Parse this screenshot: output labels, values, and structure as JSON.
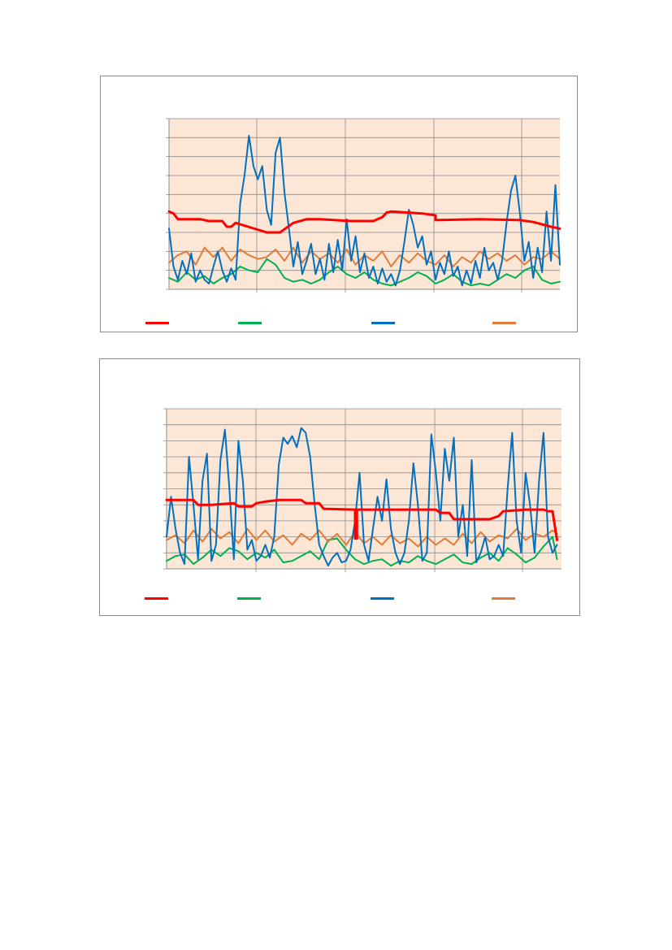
{
  "chart_data": [
    {
      "type": "line",
      "title": "",
      "xlabel": "",
      "ylabel": "",
      "ylim": [
        0,
        9
      ],
      "xlim": [
        0,
        4.4
      ],
      "grid": true,
      "legend_position": "bottom",
      "background_color": "#fce6d6",
      "series": [
        {
          "color": "#ff0000",
          "width": 3,
          "x": [
            0,
            0.05,
            0.1,
            0.35,
            0.45,
            0.6,
            0.65,
            0.7,
            0.75,
            1.1,
            1.25,
            1.4,
            1.55,
            1.7,
            2.05,
            2.3,
            2.4,
            2.45,
            2.5,
            2.85,
            3.0,
            3.0,
            3.05,
            3.5,
            3.95,
            4.1,
            4.3,
            4.4
          ],
          "y": [
            4.1,
            4.0,
            3.7,
            3.7,
            3.6,
            3.6,
            3.3,
            3.3,
            3.5,
            3.0,
            3.0,
            3.5,
            3.7,
            3.7,
            3.6,
            3.6,
            3.8,
            4.05,
            4.1,
            4.0,
            3.9,
            3.65,
            3.65,
            3.7,
            3.65,
            3.55,
            3.3,
            3.2
          ]
        },
        {
          "color": "#00b050",
          "width": 2,
          "x": [
            0,
            0.1,
            0.2,
            0.3,
            0.4,
            0.5,
            0.6,
            0.7,
            0.8,
            0.9,
            1.0,
            1.1,
            1.2,
            1.3,
            1.4,
            1.5,
            1.6,
            1.7,
            1.8,
            1.9,
            2.0,
            2.1,
            2.2,
            2.3,
            2.4,
            2.5,
            2.6,
            2.7,
            2.8,
            2.9,
            3.0,
            3.1,
            3.2,
            3.3,
            3.4,
            3.5,
            3.6,
            3.7,
            3.8,
            3.9,
            4.0,
            4.1,
            4.2,
            4.3,
            4.4
          ],
          "y": [
            0.6,
            0.4,
            0.9,
            0.5,
            0.7,
            0.3,
            0.6,
            0.8,
            1.2,
            1.0,
            0.9,
            1.6,
            1.3,
            0.6,
            0.4,
            0.5,
            0.3,
            0.5,
            0.9,
            1.2,
            0.8,
            0.6,
            0.9,
            0.5,
            0.3,
            0.2,
            0.4,
            0.6,
            0.9,
            0.7,
            0.3,
            0.5,
            0.8,
            0.4,
            0.2,
            0.3,
            0.2,
            0.5,
            0.8,
            0.6,
            1.0,
            1.2,
            0.5,
            0.3,
            0.4
          ]
        },
        {
          "color": "#0070c0",
          "width": 2,
          "x": [
            0,
            0.05,
            0.1,
            0.15,
            0.2,
            0.25,
            0.3,
            0.35,
            0.4,
            0.45,
            0.5,
            0.55,
            0.6,
            0.65,
            0.7,
            0.75,
            0.8,
            0.85,
            0.9,
            0.95,
            1.0,
            1.05,
            1.1,
            1.15,
            1.2,
            1.25,
            1.3,
            1.35,
            1.4,
            1.45,
            1.5,
            1.55,
            1.6,
            1.65,
            1.7,
            1.75,
            1.8,
            1.85,
            1.9,
            1.95,
            2.0,
            2.05,
            2.1,
            2.15,
            2.2,
            2.25,
            2.3,
            2.35,
            2.4,
            2.45,
            2.5,
            2.55,
            2.6,
            2.65,
            2.7,
            2.75,
            2.8,
            2.85,
            2.9,
            2.95,
            3.0,
            3.05,
            3.1,
            3.15,
            3.2,
            3.25,
            3.3,
            3.35,
            3.4,
            3.45,
            3.5,
            3.55,
            3.6,
            3.65,
            3.7,
            3.75,
            3.8,
            3.85,
            3.9,
            3.95,
            4.0,
            4.05,
            4.1,
            4.15,
            4.2,
            4.25,
            4.3,
            4.35,
            4.4
          ],
          "y": [
            3.2,
            1.2,
            0.5,
            1.5,
            0.8,
            1.9,
            0.4,
            1.0,
            0.5,
            0.3,
            1.2,
            2.0,
            1.0,
            0.4,
            1.1,
            0.5,
            4.5,
            6.0,
            8.1,
            6.5,
            5.8,
            6.5,
            4.2,
            3.4,
            7.2,
            8.0,
            5.1,
            3.2,
            1.2,
            2.5,
            0.8,
            1.5,
            2.4,
            0.8,
            1.6,
            0.5,
            2.4,
            0.9,
            2.6,
            1.0,
            3.7,
            1.5,
            2.8,
            0.9,
            1.9,
            0.6,
            1.2,
            0.3,
            1.1,
            0.4,
            0.8,
            0.2,
            1.0,
            2.5,
            4.2,
            3.4,
            2.2,
            2.8,
            1.3,
            2.0,
            0.5,
            1.4,
            0.8,
            2.0,
            0.7,
            1.2,
            0.2,
            1.0,
            0.3,
            1.5,
            0.6,
            2.2,
            1.0,
            1.4,
            0.5,
            1.5,
            3.5,
            5.2,
            6.0,
            4.0,
            1.5,
            2.5,
            0.6,
            2.2,
            0.9,
            4.1,
            1.5,
            5.5,
            1.3
          ]
        },
        {
          "color": "#e07b39",
          "width": 2,
          "x": [
            0,
            0.1,
            0.2,
            0.3,
            0.4,
            0.5,
            0.6,
            0.7,
            0.8,
            0.9,
            1.0,
            1.1,
            1.2,
            1.3,
            1.4,
            1.5,
            1.6,
            1.7,
            1.8,
            1.9,
            2.0,
            2.1,
            2.2,
            2.3,
            2.4,
            2.5,
            2.6,
            2.7,
            2.8,
            2.9,
            3.0,
            3.1,
            3.2,
            3.3,
            3.4,
            3.5,
            3.6,
            3.7,
            3.8,
            3.9,
            4.0,
            4.1,
            4.2,
            4.3,
            4.4
          ],
          "y": [
            1.4,
            1.8,
            2.0,
            1.3,
            2.2,
            1.7,
            2.2,
            1.5,
            2.1,
            1.8,
            1.6,
            1.7,
            2.1,
            1.5,
            2.2,
            1.4,
            2.0,
            1.6,
            1.9,
            1.4,
            2.1,
            1.3,
            1.8,
            1.5,
            2.0,
            1.2,
            1.8,
            1.4,
            1.9,
            1.5,
            1.3,
            1.8,
            1.2,
            1.7,
            1.4,
            2.0,
            1.6,
            1.9,
            1.5,
            1.8,
            1.3,
            1.7,
            1.6,
            2.0,
            1.6
          ]
        }
      ]
    },
    {
      "type": "line",
      "title": "",
      "xlabel": "",
      "ylabel": "",
      "ylim": [
        0,
        10
      ],
      "xlim": [
        0,
        4.4
      ],
      "grid": true,
      "legend_position": "bottom",
      "background_color": "#fce6d6",
      "series": [
        {
          "color": "#ff0000",
          "width": 3,
          "x": [
            0,
            0.3,
            0.35,
            0.5,
            0.75,
            0.8,
            0.95,
            1.0,
            1.1,
            1.25,
            1.5,
            1.55,
            1.7,
            1.75,
            2.1,
            2.1,
            2.12,
            2.12,
            2.2,
            3.0,
            3.05,
            3.15,
            3.2,
            3.6,
            3.7,
            3.75,
            4.0,
            4.1,
            4.2,
            4.25,
            4.3,
            4.35
          ],
          "y": [
            4.3,
            4.3,
            4.0,
            4.0,
            4.1,
            3.9,
            3.9,
            4.1,
            4.2,
            4.3,
            4.3,
            4.1,
            4.1,
            3.75,
            3.7,
            1.9,
            1.9,
            3.7,
            3.7,
            3.7,
            3.5,
            3.5,
            3.1,
            3.1,
            3.3,
            3.6,
            3.7,
            3.7,
            3.7,
            3.6,
            3.6,
            1.8
          ]
        },
        {
          "color": "#00b050",
          "width": 2,
          "x": [
            0,
            0.1,
            0.2,
            0.3,
            0.4,
            0.5,
            0.6,
            0.7,
            0.8,
            0.9,
            1.0,
            1.1,
            1.2,
            1.3,
            1.4,
            1.5,
            1.6,
            1.7,
            1.8,
            1.9,
            2.0,
            2.1,
            2.2,
            2.3,
            2.4,
            2.5,
            2.6,
            2.7,
            2.8,
            2.9,
            3.0,
            3.1,
            3.2,
            3.3,
            3.4,
            3.5,
            3.6,
            3.7,
            3.8,
            3.9,
            4.0,
            4.1,
            4.2,
            4.3,
            4.35
          ],
          "y": [
            0.5,
            0.8,
            0.9,
            0.3,
            0.7,
            1.2,
            0.8,
            1.3,
            1.1,
            0.6,
            1.0,
            0.7,
            1.2,
            0.4,
            0.5,
            0.8,
            1.1,
            0.6,
            1.8,
            1.9,
            1.2,
            0.6,
            0.3,
            0.5,
            0.6,
            0.2,
            0.5,
            0.4,
            0.8,
            0.5,
            0.3,
            0.6,
            0.9,
            0.4,
            0.3,
            0.7,
            1.0,
            0.5,
            1.3,
            0.9,
            0.4,
            0.7,
            1.4,
            2.0,
            0.6
          ]
        },
        {
          "color": "#0070c0",
          "width": 2,
          "x": [
            0,
            0.05,
            0.1,
            0.15,
            0.2,
            0.25,
            0.3,
            0.35,
            0.4,
            0.45,
            0.5,
            0.55,
            0.6,
            0.65,
            0.7,
            0.75,
            0.8,
            0.85,
            0.9,
            0.95,
            1.0,
            1.05,
            1.1,
            1.15,
            1.2,
            1.25,
            1.3,
            1.35,
            1.4,
            1.45,
            1.5,
            1.55,
            1.6,
            1.65,
            1.7,
            1.75,
            1.8,
            1.85,
            1.9,
            1.95,
            2.0,
            2.05,
            2.1,
            2.15,
            2.2,
            2.25,
            2.3,
            2.35,
            2.4,
            2.45,
            2.5,
            2.55,
            2.6,
            2.65,
            2.7,
            2.75,
            2.8,
            2.85,
            2.9,
            2.95,
            3.0,
            3.05,
            3.1,
            3.15,
            3.2,
            3.25,
            3.3,
            3.35,
            3.4,
            3.45,
            3.5,
            3.55,
            3.6,
            3.65,
            3.7,
            3.75,
            3.8,
            3.85,
            3.9,
            3.95,
            4.0,
            4.05,
            4.1,
            4.15,
            4.2,
            4.25,
            4.3,
            4.35
          ],
          "y": [
            2.0,
            4.5,
            2.5,
            1.0,
            0.3,
            7.0,
            4.0,
            0.6,
            5.5,
            7.2,
            0.5,
            1.5,
            6.8,
            8.7,
            5.0,
            0.6,
            8.0,
            5.5,
            1.2,
            1.8,
            0.5,
            0.8,
            1.5,
            0.7,
            2.0,
            6.5,
            8.2,
            7.8,
            8.3,
            7.6,
            8.8,
            8.5,
            7.0,
            4.0,
            1.5,
            0.8,
            0.2,
            0.7,
            1.0,
            0.4,
            0.5,
            1.2,
            3.0,
            6.0,
            1.5,
            0.5,
            2.5,
            4.5,
            3.0,
            5.6,
            2.5,
            1.0,
            0.3,
            1.0,
            3.0,
            6.6,
            4.0,
            0.5,
            1.0,
            8.4,
            6.0,
            3.0,
            7.5,
            5.5,
            8.2,
            2.0,
            4.0,
            0.8,
            6.8,
            0.4,
            1.0,
            2.0,
            0.6,
            0.8,
            1.5,
            0.8,
            5.0,
            8.5,
            3.0,
            1.0,
            6.0,
            4.0,
            1.0,
            5.5,
            8.5,
            2.0,
            1.0,
            1.5
          ]
        },
        {
          "color": "#e07b39",
          "width": 2,
          "x": [
            0,
            0.1,
            0.2,
            0.3,
            0.4,
            0.5,
            0.6,
            0.7,
            0.8,
            0.9,
            1.0,
            1.1,
            1.2,
            1.3,
            1.4,
            1.5,
            1.6,
            1.7,
            1.8,
            1.9,
            2.0,
            2.1,
            2.2,
            2.3,
            2.4,
            2.5,
            2.6,
            2.7,
            2.8,
            2.9,
            3.0,
            3.1,
            3.2,
            3.3,
            3.4,
            3.5,
            3.6,
            3.7,
            3.8,
            3.9,
            4.0,
            4.1,
            4.2,
            4.3,
            4.35
          ],
          "y": [
            1.8,
            2.1,
            1.6,
            2.4,
            1.7,
            2.5,
            1.9,
            2.3,
            1.6,
            2.5,
            1.8,
            2.4,
            1.7,
            2.1,
            1.5,
            2.2,
            1.8,
            2.4,
            1.7,
            2.2,
            1.5,
            2.3,
            1.6,
            2.0,
            1.5,
            2.1,
            1.6,
            1.9,
            1.4,
            2.0,
            1.5,
            1.9,
            1.5,
            2.2,
            1.6,
            2.3,
            1.7,
            2.1,
            1.9,
            2.5,
            1.8,
            2.2,
            2.0,
            2.4,
            2.2
          ]
        }
      ]
    }
  ]
}
